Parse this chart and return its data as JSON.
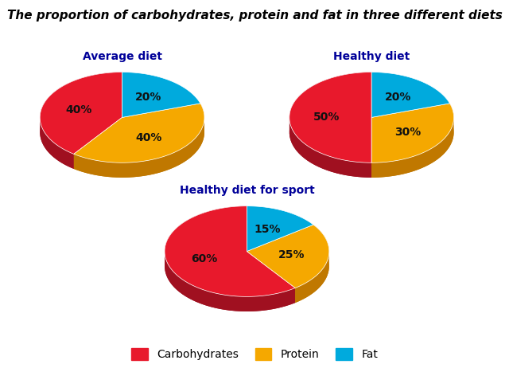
{
  "title": "The proportion of carbohydrates, protein and fat in three different diets",
  "title_fontsize": 11,
  "title_style": "italic",
  "title_weight": "bold",
  "charts": [
    {
      "label": "Average diet",
      "values": [
        40,
        40,
        20
      ],
      "pct_labels": [
        "40%",
        "40%",
        "20%"
      ],
      "colors": [
        "#e8192c",
        "#f5a800",
        "#00aadd"
      ],
      "dark_colors": [
        "#a01020",
        "#c07800",
        "#0077aa"
      ],
      "startangle": 90
    },
    {
      "label": "Healthy diet",
      "values": [
        50,
        30,
        20
      ],
      "pct_labels": [
        "50%",
        "30%",
        "20%"
      ],
      "colors": [
        "#e8192c",
        "#f5a800",
        "#00aadd"
      ],
      "dark_colors": [
        "#a01020",
        "#c07800",
        "#0077aa"
      ],
      "startangle": 90
    },
    {
      "label": "Healthy diet for sport",
      "values": [
        60,
        25,
        15
      ],
      "pct_labels": [
        "60%",
        "25%",
        "15%"
      ],
      "colors": [
        "#e8192c",
        "#f5a800",
        "#00aadd"
      ],
      "dark_colors": [
        "#a01020",
        "#c07800",
        "#0077aa"
      ],
      "startangle": 90
    }
  ],
  "legend_labels": [
    "Carbohydrates",
    "Protein",
    "Fat"
  ],
  "legend_colors": [
    "#e8192c",
    "#f5a800",
    "#00aadd"
  ],
  "background_color": "#ffffff",
  "label_fontsize": 10,
  "label_color": "#111111",
  "title_label_color": "#000099",
  "title_label_fontsize": 10
}
